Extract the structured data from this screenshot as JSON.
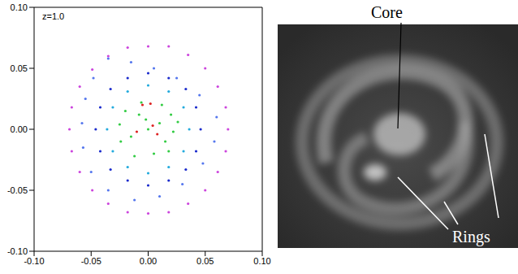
{
  "chart_data": {
    "type": "scatter",
    "annotations": [
      "z=1.0"
    ],
    "xlim": [
      -0.1,
      0.1
    ],
    "xticks": [
      {
        "value": -0.1,
        "label": "-0.10"
      },
      -0.05,
      {
        "value": 0,
        "label": "0.00"
      },
      0.05,
      {
        "value": 0.1,
        "label": "0.10"
      }
    ],
    "ylim": [
      -0.1,
      0.1
    ],
    "yticks": [
      {
        "value": -0.1,
        "label": "-0.10"
      },
      -0.05,
      {
        "value": 0,
        "label": "0.00"
      },
      0.05,
      {
        "value": 0.1,
        "label": "0.10"
      }
    ],
    "series": [
      {
        "color": "#cc44dd",
        "x": [
          0.07,
          0.068,
          0.061,
          0.05,
          0.035,
          0.018,
          0.0,
          -0.018,
          -0.035,
          -0.049,
          -0.06,
          -0.067,
          -0.069,
          -0.067,
          -0.06,
          -0.049,
          -0.035,
          -0.018,
          0.0,
          0.018,
          0.035,
          0.05,
          0.061,
          0.068
        ],
        "y": [
          0.0,
          0.018,
          0.035,
          0.05,
          0.061,
          0.068,
          0.068,
          0.067,
          0.06,
          0.049,
          0.035,
          0.018,
          0.0,
          -0.018,
          -0.035,
          -0.05,
          -0.061,
          -0.068,
          -0.069,
          -0.068,
          -0.061,
          -0.05,
          -0.035,
          -0.018
        ]
      },
      {
        "color": "#5577ee",
        "x": [
          -0.035,
          -0.015,
          0.005,
          0.025,
          0.045,
          0.06,
          0.058,
          0.048,
          0.03,
          0.01,
          -0.012,
          -0.035,
          -0.05,
          -0.057,
          -0.058,
          -0.055,
          -0.048
        ],
        "y": [
          0.058,
          0.055,
          0.05,
          0.042,
          0.028,
          0.01,
          -0.01,
          -0.028,
          -0.045,
          -0.055,
          -0.058,
          -0.05,
          -0.035,
          -0.015,
          0.005,
          0.025,
          0.042
        ]
      },
      {
        "color": "#1a2acc",
        "x": [
          0.046,
          0.042,
          0.033,
          0.018,
          0.0,
          -0.018,
          -0.033,
          -0.042,
          -0.046,
          -0.042,
          -0.033,
          -0.018,
          0.0,
          0.018,
          0.033,
          0.042
        ],
        "y": [
          0.0,
          0.018,
          0.033,
          0.042,
          0.046,
          0.042,
          0.033,
          0.018,
          0.0,
          -0.018,
          -0.033,
          -0.042,
          -0.046,
          -0.042,
          -0.033,
          -0.018
        ]
      },
      {
        "color": "#22aadd",
        "x": [
          0.036,
          0.031,
          0.018,
          0.0,
          -0.018,
          -0.031,
          -0.036,
          -0.031,
          -0.018,
          0.0,
          0.018,
          0.031
        ],
        "y": [
          0.0,
          0.018,
          0.031,
          0.036,
          0.031,
          0.018,
          0.0,
          -0.018,
          -0.031,
          -0.036,
          -0.031,
          -0.018
        ]
      },
      {
        "color": "#33cc44",
        "x": [
          0.0,
          0.01,
          -0.008,
          0.015,
          -0.015,
          0.02,
          -0.02,
          0.005,
          -0.006,
          0.022,
          -0.024,
          0.012,
          -0.012,
          0.018,
          -0.002,
          0.026,
          -0.025
        ],
        "y": [
          0.0,
          0.005,
          0.012,
          -0.01,
          -0.006,
          0.012,
          0.015,
          -0.02,
          0.022,
          -0.002,
          -0.01,
          0.02,
          -0.022,
          -0.018,
          0.008,
          0.006,
          0.004
        ]
      },
      {
        "color": "#dd2222",
        "x": [
          -0.005,
          0.002,
          0.008,
          -0.01,
          0.004
        ],
        "y": [
          0.02,
          0.021,
          -0.004,
          -0.002,
          0.003
        ]
      }
    ]
  },
  "image": {
    "labels": {
      "core": "Core",
      "rings": "Rings"
    }
  }
}
